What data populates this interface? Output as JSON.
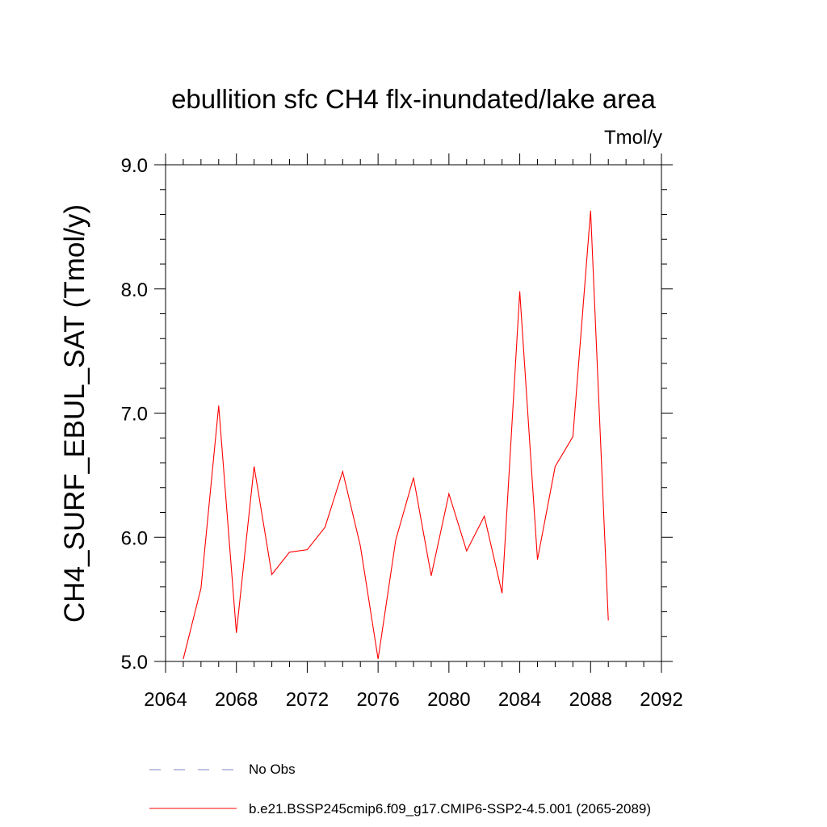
{
  "chart_data": {
    "type": "line",
    "title": "ebullition sfc CH4 flx-inundated/lake area",
    "units": "Tmol/y",
    "ylabel": "CH4_SURF_EBUL_SAT  (Tmol/y)",
    "xlabel": "",
    "xlim": [
      2064,
      2092
    ],
    "ylim": [
      5.0,
      9.0
    ],
    "xticks": [
      2064,
      2068,
      2072,
      2076,
      2080,
      2084,
      2088,
      2092
    ],
    "yticks": [
      "5.0",
      "6.0",
      "7.0",
      "8.0",
      "9.0"
    ],
    "x": [
      2065,
      2066,
      2067,
      2068,
      2069,
      2070,
      2071,
      2072,
      2073,
      2074,
      2075,
      2076,
      2077,
      2078,
      2079,
      2080,
      2081,
      2082,
      2083,
      2084,
      2085,
      2086,
      2087,
      2088,
      2089
    ],
    "series": [
      {
        "name": "b.e21.BSSP245cmip6.f09_g17.CMIP6-SSP2-4.5.001 (2065-2089)",
        "color": "#ff0000",
        "values": [
          5.02,
          5.59,
          7.06,
          5.23,
          6.57,
          5.7,
          5.88,
          5.9,
          6.08,
          6.53,
          5.93,
          5.02,
          5.98,
          6.48,
          5.69,
          6.35,
          5.89,
          6.17,
          5.55,
          7.98,
          5.82,
          6.57,
          6.81,
          8.63,
          5.33
        ]
      }
    ],
    "legend": [
      {
        "label": "No Obs",
        "color": "#8080c0",
        "style": "dashed"
      },
      {
        "label": "b.e21.BSSP245cmip6.f09_g17.CMIP6-SSP2-4.5.001 (2065-2089)",
        "color": "#ff0000",
        "style": "solid"
      }
    ],
    "grid": false
  }
}
